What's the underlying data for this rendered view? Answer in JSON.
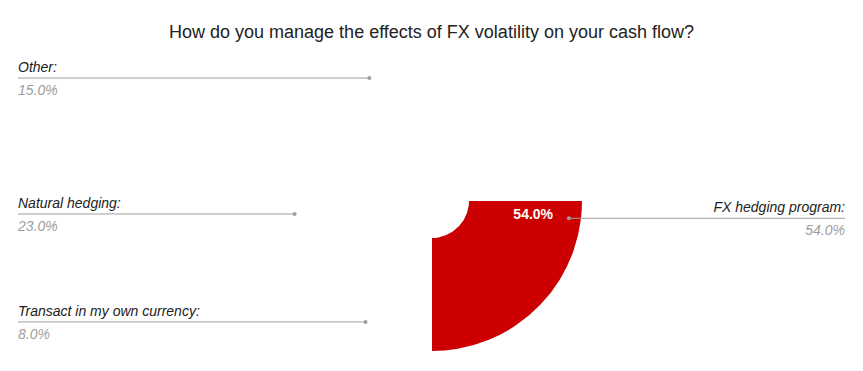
{
  "chart_data": {
    "type": "pie",
    "title": "How do you manage the effects of FX volatility on your cash flow?",
    "categories": [
      "FX hedging program:",
      "Transact in my own currency:",
      "Natural hedging:",
      "Other:"
    ],
    "values": [
      54,
      8,
      23,
      15
    ],
    "value_labels": [
      "54.0%",
      "8.0%",
      "23.0%",
      "15.0%"
    ],
    "colors": [
      "#cc0000",
      "#dd6464",
      "#f47c7c",
      "#ff4d4d"
    ],
    "data_labels": true
  }
}
